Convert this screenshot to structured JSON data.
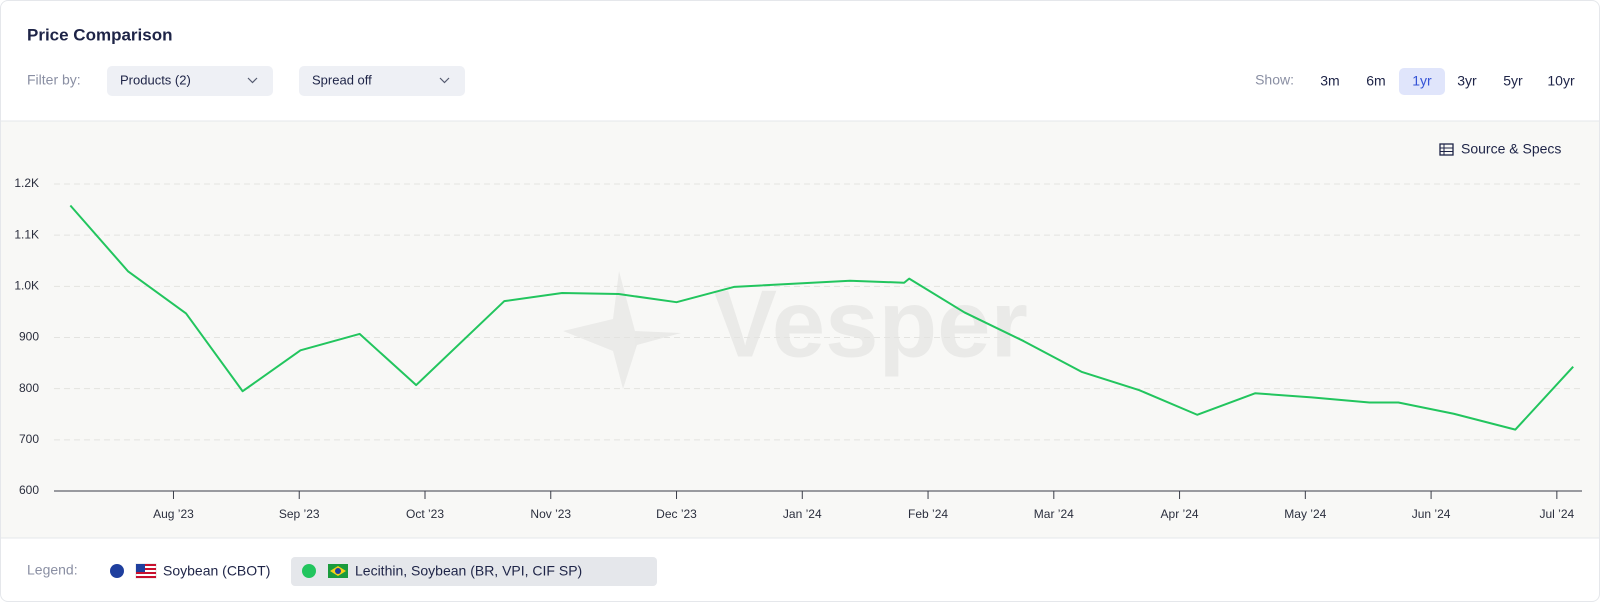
{
  "header": {
    "title": "Price Comparison",
    "filter_label": "Filter by:",
    "filters": [
      "Products (2)",
      "Spread off"
    ],
    "show_label": "Show:",
    "ranges": [
      "3m",
      "6m",
      "1yr",
      "3yr",
      "5yr",
      "10yr"
    ],
    "active_range": "1yr"
  },
  "source_link": "Source & Specs",
  "watermark": "Vesper",
  "legend_label": "Legend:",
  "chart_data": {
    "type": "line",
    "x": [
      -0.82,
      -0.36,
      0.1,
      0.55,
      1.01,
      1.48,
      1.93,
      2.63,
      3.09,
      3.54,
      4.0,
      4.46,
      5.38,
      5.81,
      5.85,
      6.29,
      6.76,
      7.22,
      7.68,
      8.14,
      8.6,
      9.05,
      9.51,
      9.74,
      10.18,
      10.67,
      11.13
    ],
    "series": [
      {
        "name": "Soybean (CBOT)",
        "color": "#1f3f9e",
        "visible": false,
        "values": [
          null,
          null,
          null,
          null,
          null,
          null,
          null,
          null,
          null,
          null,
          null,
          null,
          null,
          null,
          null,
          null,
          null,
          null,
          null,
          null,
          null,
          null,
          null,
          null,
          null,
          null,
          null
        ]
      },
      {
        "name": "Lecithin, Soybean (BR, VPI, CIF SP)",
        "color": "#22c55e",
        "visible": true,
        "values": [
          1158,
          1029,
          947,
          795,
          875,
          907,
          807,
          971,
          987,
          985,
          969,
          999,
          1011,
          1007,
          1015,
          949,
          893,
          833,
          797,
          749,
          791,
          783,
          773,
          773,
          751,
          720,
          843
        ]
      }
    ],
    "xlim": [
      -0.95,
      11.2
    ],
    "xticks": [
      {
        "value": 0,
        "label": "Aug ’23"
      },
      {
        "value": 1,
        "label": "Sep ’23"
      },
      {
        "value": 2,
        "label": "Oct ’23"
      },
      {
        "value": 3,
        "label": "Nov ’23"
      },
      {
        "value": 4,
        "label": "Dec ’23"
      },
      {
        "value": 5,
        "label": "Jan ’24"
      },
      {
        "value": 6,
        "label": "Feb ’24"
      },
      {
        "value": 7,
        "label": "Mar ’24"
      },
      {
        "value": 8,
        "label": "Apr ’24"
      },
      {
        "value": 9,
        "label": "May ’24"
      },
      {
        "value": 10,
        "label": "Jun ’24"
      },
      {
        "value": 11,
        "label": "Jul ’24"
      }
    ],
    "ylim": [
      600,
      1200
    ],
    "yticks": [
      600,
      700,
      800,
      900,
      {
        "value": 1000,
        "label": "1.0K"
      },
      {
        "value": 1100,
        "label": "1.1K"
      },
      {
        "value": 1200,
        "label": "1.2K"
      }
    ],
    "grid": true
  }
}
